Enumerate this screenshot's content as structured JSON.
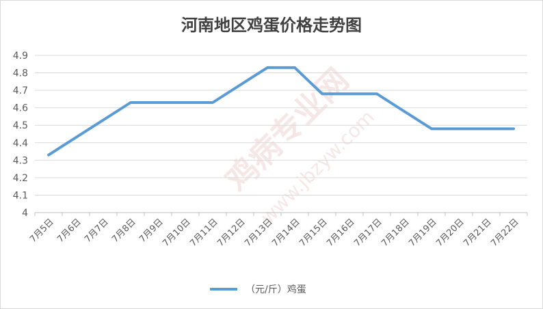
{
  "chart_data": {
    "type": "line",
    "title": "河南地区鸡蛋价格走势图",
    "categories": [
      "7月5日",
      "7月6日",
      "7月7日",
      "7月8日",
      "7月9日",
      "7月10日",
      "7月11日",
      "7月12日",
      "7月13日",
      "7月14日",
      "7月15日",
      "7月16日",
      "7月17日",
      "7月18日",
      "7月19日",
      "7月20日",
      "7月21日",
      "7月22日"
    ],
    "series": [
      {
        "name": "（元/斤）鸡蛋",
        "color": "#5b9bd5",
        "values": [
          4.33,
          4.43,
          4.53,
          4.63,
          4.63,
          4.63,
          4.63,
          4.73,
          4.83,
          4.83,
          4.68,
          4.68,
          4.68,
          4.58,
          4.48,
          4.48,
          4.48,
          4.48
        ]
      }
    ],
    "ylim": [
      4,
      4.9
    ],
    "yticks": [
      "4",
      "4.1",
      "4.2",
      "4.3",
      "4.4",
      "4.5",
      "4.6",
      "4.7",
      "4.8",
      "4.9"
    ],
    "grid": true,
    "legend_position": "bottom"
  },
  "watermark": {
    "main": "鸡病专业网",
    "sub": "www.jbzyw.com"
  }
}
